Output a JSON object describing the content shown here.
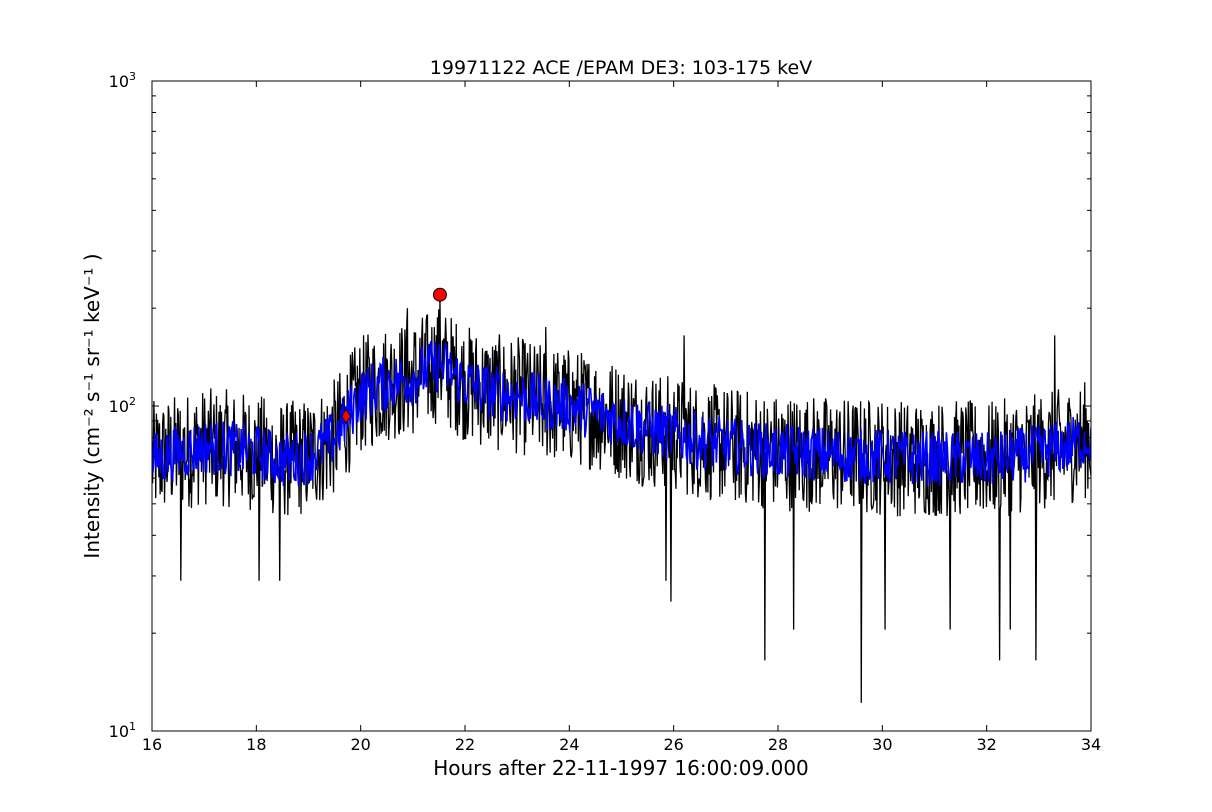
{
  "chart_data": {
    "type": "line",
    "title": "19971122 ACE /EPAM DE3: 103-175 keV",
    "xlabel": "Hours after 22-11-1997 16:00:09.000",
    "ylabel": "Intensity (cm⁻² s⁻¹ sr⁻¹ keV⁻¹ )",
    "xlim": [
      16,
      34
    ],
    "ylim": [
      10,
      1000
    ],
    "yscale": "log",
    "grid": false,
    "x_ticks": [
      16,
      18,
      20,
      22,
      24,
      26,
      28,
      30,
      32,
      34
    ],
    "x_tick_labels": [
      "16",
      "18",
      "20",
      "22",
      "24",
      "26",
      "28",
      "30",
      "32",
      "34"
    ],
    "y_ticks": [
      10,
      100,
      1000
    ],
    "y_tick_labels": [
      {
        "base": "10",
        "exp": "1"
      },
      {
        "base": "10",
        "exp": "2"
      },
      {
        "base": "10",
        "exp": "3"
      }
    ],
    "series": [
      {
        "style": "raw",
        "color": "#000000",
        "x": [
          16.0,
          16.5,
          17.0,
          17.5,
          18.0,
          18.5,
          19.0,
          19.5,
          20.0,
          20.5,
          21.0,
          21.5,
          22.0,
          22.5,
          23.0,
          23.5,
          24.0,
          24.5,
          25.0,
          25.5,
          26.0,
          26.5,
          27.0,
          27.5,
          28.0,
          28.5,
          29.0,
          29.5,
          30.0,
          30.5,
          31.0,
          31.5,
          32.0,
          32.5,
          33.0,
          33.5,
          34.0
        ],
        "values": [
          68,
          72,
          75,
          74,
          72,
          68,
          70,
          80,
          108,
          118,
          122,
          135,
          118,
          110,
          108,
          102,
          100,
          96,
          90,
          85,
          82,
          78,
          76,
          74,
          72,
          72,
          71,
          70,
          70,
          69,
          69,
          69,
          68,
          70,
          72,
          75,
          80
        ],
        "spikes": [
          {
            "x": 16.55,
            "y": 29
          },
          {
            "x": 18.05,
            "y": 29
          },
          {
            "x": 18.45,
            "y": 29
          },
          {
            "x": 21.52,
            "y": 220
          },
          {
            "x": 25.85,
            "y": 29
          },
          {
            "x": 25.95,
            "y": 25
          },
          {
            "x": 27.75,
            "y": 16.5
          },
          {
            "x": 28.3,
            "y": 20.5
          },
          {
            "x": 29.6,
            "y": 12.2
          },
          {
            "x": 30.05,
            "y": 20.5
          },
          {
            "x": 31.3,
            "y": 20.5
          },
          {
            "x": 32.25,
            "y": 16.5
          },
          {
            "x": 32.45,
            "y": 20.5
          },
          {
            "x": 32.95,
            "y": 16.5
          },
          {
            "x": 33.3,
            "y": 165
          },
          {
            "x": 26.2,
            "y": 165
          },
          {
            "x": 23.55,
            "y": 175
          },
          {
            "x": 20.9,
            "y": 200
          }
        ]
      },
      {
        "style": "smoothed",
        "color": "#0000ff",
        "x": [
          16.0,
          16.5,
          17.0,
          17.5,
          18.0,
          18.5,
          19.0,
          19.5,
          20.0,
          20.5,
          21.0,
          21.5,
          22.0,
          22.5,
          23.0,
          23.5,
          24.0,
          24.5,
          25.0,
          25.5,
          26.0,
          26.5,
          27.0,
          27.5,
          28.0,
          28.5,
          29.0,
          29.5,
          30.0,
          30.5,
          31.0,
          31.5,
          32.0,
          32.5,
          33.0,
          33.5,
          34.0
        ],
        "values": [
          68,
          72,
          75,
          74,
          72,
          68,
          70,
          80,
          108,
          118,
          122,
          135,
          118,
          110,
          108,
          102,
          100,
          96,
          90,
          85,
          82,
          78,
          76,
          74,
          72,
          72,
          71,
          70,
          70,
          69,
          69,
          69,
          68,
          70,
          72,
          75,
          80
        ]
      }
    ],
    "markers": [
      {
        "shape": "circle",
        "color": "#ff0000",
        "x": 21.52,
        "y": 220
      },
      {
        "shape": "diamond",
        "color": "#ff0000",
        "x": 19.72,
        "y": 93
      }
    ]
  }
}
